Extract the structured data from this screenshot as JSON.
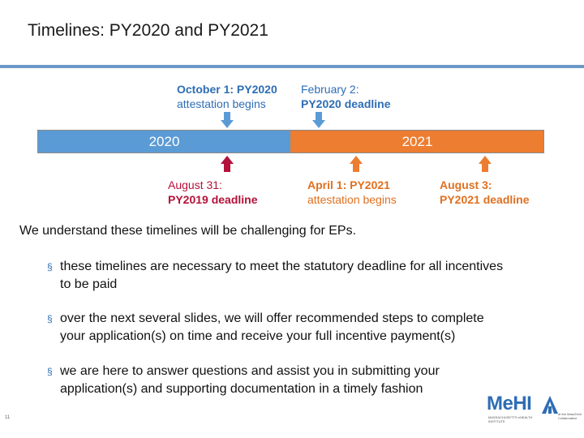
{
  "slide": {
    "title": "Timelines: PY2020 and PY2021",
    "page_number": "11"
  },
  "timeline": {
    "years": [
      "2020",
      "2021"
    ],
    "colors": {
      "year_2020": "#5b9bd5",
      "year_2021": "#ed7d31",
      "top_annotation": "#2e6db4",
      "bottom_2019": "#b3123a",
      "bottom_2021": "#e07020"
    },
    "top_annotations": [
      {
        "line1_regular": "October 1: ",
        "line1_bold": "PY2020",
        "line2": "attestation begins"
      },
      {
        "line1": "February 2:",
        "line2": "PY2020 deadline"
      }
    ],
    "bottom_annotations": [
      {
        "line1": "August 31:",
        "line2": "PY2019 deadline"
      },
      {
        "line1_regular": "April 1: ",
        "line1_bold": "PY2021",
        "line2": "attestation begins"
      },
      {
        "line1": "August 3:",
        "line2": "PY2021 deadline"
      }
    ]
  },
  "body": {
    "intro": "We understand these timelines will be challenging for EPs.",
    "bullet_marker": "§",
    "bullets": [
      {
        "line1": "these timelines are necessary to meet the statutory deadline for all incentives",
        "line2": "to be paid"
      },
      {
        "line1": "over the next several slides, we will offer recommended steps to complete",
        "line2": "your application(s) on time and receive your full incentive payment(s)"
      },
      {
        "line1": "we are here to answer questions and assist you in submitting your",
        "line2": "application(s) and supporting documentation in a timely fashion"
      }
    ]
  },
  "logo": {
    "name": "MeHI",
    "subtitle": "MASSACHUSETTS eHEALTH INSTITUTE",
    "partner": "at the MassTech Collaborative"
  }
}
